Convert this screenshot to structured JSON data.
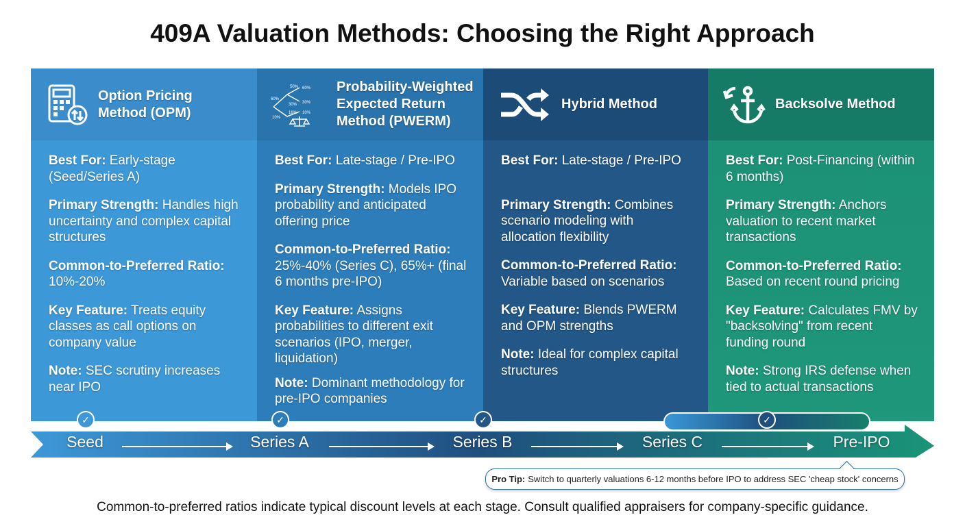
{
  "title": "409A Valuation Methods: Choosing the Right Approach",
  "columns": [
    {
      "name": "Option Pricing Method (OPM)",
      "title_lines": [
        "Option Pricing",
        "Method (OPM)"
      ],
      "icon": "calculator-icon",
      "header_color": "#3a8ccb",
      "body_color": "#3d98d8",
      "items": [
        {
          "label": "Best For:",
          "text": "Early-stage (Seed/Series A)"
        },
        {
          "label": "Primary Strength:",
          "text": "Handles high uncertainty and complex capital structures"
        },
        {
          "label": "Common-to-Preferred Ratio:",
          "text": "10%-20%"
        },
        {
          "label": "Key Feature:",
          "text": "Treats equity classes as call options on company value"
        },
        {
          "label": "Note:",
          "text": "SEC scrutiny increases near IPO"
        }
      ]
    },
    {
      "name": "Probability-Weighted Expected Return Method (PWERM)",
      "title_lines": [
        "Probability-Weighted",
        "Expected Return",
        "Method (PWERM)"
      ],
      "icon": "probability-tree-scale-icon",
      "icon_labels": [
        "50%",
        "60%",
        "60%",
        "30%",
        "30%",
        "16%",
        "10%",
        "10%"
      ],
      "header_color": "#2a74ad",
      "body_color": "#2d7dbb",
      "items": [
        {
          "label": "Best For:",
          "text": "Late-stage / Pre-IPO"
        },
        {
          "label": "Primary Strength:",
          "text": "Models IPO probability and anticipated offering price"
        },
        {
          "label": "Common-to-Preferred Ratio:",
          "text": "25%-40% (Series C), 65%+ (final 6 months pre-IPO)"
        },
        {
          "label": "Key Feature:",
          "text": "Assigns probabilities to different exit scenarios (IPO, merger, liquidation)"
        },
        {
          "label": "Note:",
          "text": "Dominant methodology for pre-IPO companies"
        }
      ]
    },
    {
      "name": "Hybrid Method",
      "title_lines": [
        "Hybrid Method"
      ],
      "icon": "shuffle-icon",
      "header_color": "#1c4b78",
      "body_color": "#235787",
      "items": [
        {
          "label": "Best For:",
          "text": "Late-stage / Pre-IPO"
        },
        {
          "label": "Primary Strength:",
          "text": "Combines scenario modeling with allocation flexibility"
        },
        {
          "label": "Common-to-Preferred Ratio:",
          "text": "Variable based on scenarios"
        },
        {
          "label": "Key Feature:",
          "text": "Blends PWERM and OPM strengths"
        },
        {
          "label": "Note:",
          "text": "Ideal for complex capital structures"
        }
      ]
    },
    {
      "name": "Backsolve Method",
      "title_lines": [
        "Backsolve Method"
      ],
      "icon": "anchor-icon",
      "header_color": "#167b66",
      "body_color": "#1c8f75",
      "items": [
        {
          "label": "Best For:",
          "text": "Post-Financing (within 6 months)"
        },
        {
          "label": "Primary Strength:",
          "text": "Anchors valuation to recent market transactions"
        },
        {
          "label": "Common-to-Preferred Ratio:",
          "text": "Based on recent round pricing"
        },
        {
          "label": "Key Feature:",
          "text": "Calculates FMV by \"backsolving\" from recent funding round"
        },
        {
          "label": "Note:",
          "text": "Strong IRS defense when tied to actual transactions"
        }
      ]
    }
  ],
  "stages": [
    "Seed",
    "Series A",
    "Series B",
    "Series C",
    "Pre-IPO"
  ],
  "pro_tip": {
    "label": "Pro Tip:",
    "text": "Switch to quarterly valuations 6-12 months before IPO to address SEC 'cheap stock' concerns"
  },
  "footer": "Common-to-preferred ratios indicate typical discount levels at each stage. Consult qualified appraisers for company-specific guidance."
}
